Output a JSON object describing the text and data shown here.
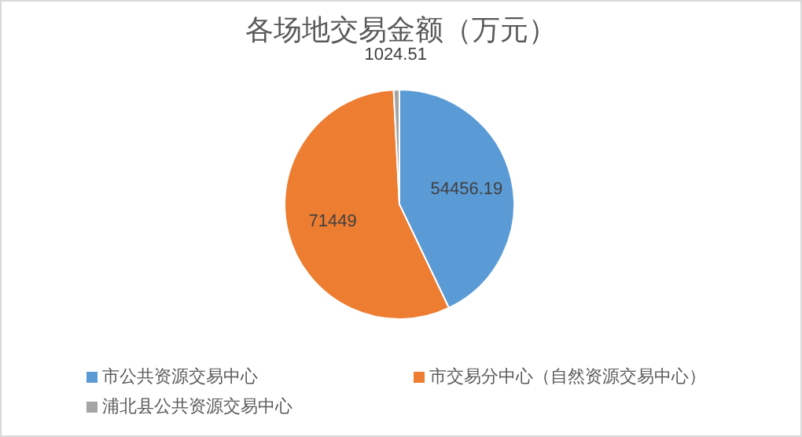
{
  "chart_data": {
    "type": "pie",
    "title": "各场地交易金额（万元）",
    "categories": [
      "市公共资源交易中心",
      "市交易分中心（自然资源交易中心）",
      "浦北县公共资源交易中心"
    ],
    "values": [
      54456.19,
      71449,
      1024.51
    ],
    "colors": [
      "#5b9bd5",
      "#ed7d31",
      "#a5a5a5"
    ],
    "data_labels": true,
    "legend": "bottom"
  }
}
